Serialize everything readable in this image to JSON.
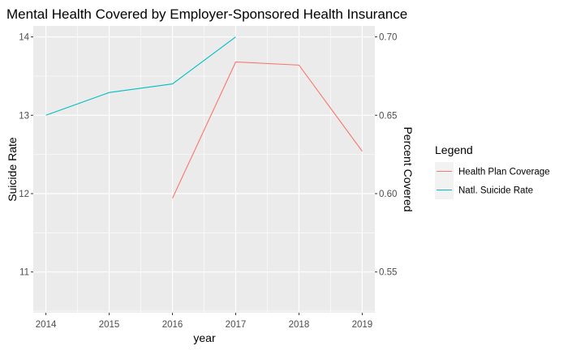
{
  "chart_data": {
    "type": "line",
    "title": "Mental Health Covered by Employer-Sponsored Health Insurance",
    "xlabel": "year",
    "ylabel": "Suicide Rate",
    "y2label": "Percent Covered",
    "xlim": [
      2013.8,
      2019.2
    ],
    "ylim": [
      10.48,
      14.14
    ],
    "y2lim": [
      0.524,
      0.707
    ],
    "x_ticks": [
      2014,
      2015,
      2016,
      2017,
      2018,
      2019
    ],
    "y_ticks": [
      11,
      12,
      13,
      14
    ],
    "y2_ticks": [
      0.55,
      0.6,
      0.65,
      0.7
    ],
    "grid": true,
    "legend": {
      "title": "Legend",
      "position": "right"
    },
    "series": [
      {
        "name": "Health Plan Coverage",
        "axis": "right",
        "color": "#F8766D",
        "x": [
          2016,
          2017,
          2018,
          2019
        ],
        "values": [
          0.597,
          0.684,
          0.682,
          0.627
        ]
      },
      {
        "name": "Natl. Suicide Rate",
        "axis": "left",
        "color": "#00BFC4",
        "x": [
          2014,
          2015,
          2016,
          2017
        ],
        "values": [
          13.0,
          13.29,
          13.4,
          14.0
        ]
      }
    ]
  }
}
